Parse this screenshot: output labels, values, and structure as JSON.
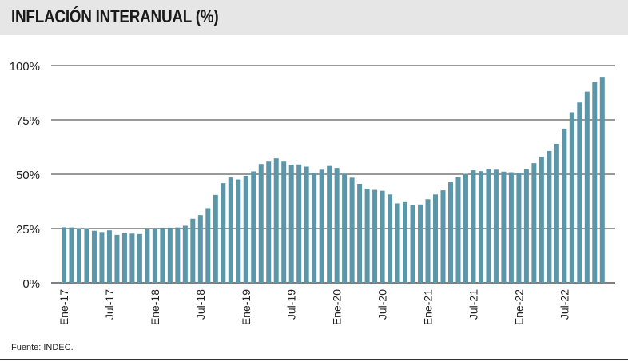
{
  "title": "INFLACIÓN INTERANUAL (%)",
  "source": "Fuente: INDEC.",
  "colors": {
    "bar": "#5b97a8",
    "grid": "#333333",
    "header_bg": "#e6e6e6"
  },
  "chart_data": {
    "type": "bar",
    "title": "INFLACIÓN INTERANUAL (%)",
    "ylim": [
      0,
      100
    ],
    "yticks": [
      "0%",
      "25%",
      "50%",
      "75%",
      "100%"
    ],
    "ytick_values": [
      0,
      25,
      50,
      75,
      100
    ],
    "grid": true,
    "categories": [
      "Ene-17",
      "Feb-17",
      "Mar-17",
      "Abr-17",
      "May-17",
      "Jun-17",
      "Jul-17",
      "Ago-17",
      "Sep-17",
      "Oct-17",
      "Nov-17",
      "Dic-17",
      "Ene-18",
      "Feb-18",
      "Mar-18",
      "Abr-18",
      "May-18",
      "Jun-18",
      "Jul-18",
      "Ago-18",
      "Sep-18",
      "Oct-18",
      "Nov-18",
      "Dic-18",
      "Ene-19",
      "Feb-19",
      "Mar-19",
      "Abr-19",
      "May-19",
      "Jun-19",
      "Jul-19",
      "Ago-19",
      "Sep-19",
      "Oct-19",
      "Nov-19",
      "Dic-19",
      "Ene-20",
      "Feb-20",
      "Mar-20",
      "Abr-20",
      "May-20",
      "Jun-20",
      "Jul-20",
      "Ago-20",
      "Sep-20",
      "Oct-20",
      "Nov-20",
      "Dic-20",
      "Ene-21",
      "Feb-21",
      "Mar-21",
      "Abr-21",
      "May-21",
      "Jun-21",
      "Jul-21",
      "Ago-21",
      "Sep-21",
      "Oct-21",
      "Nov-21",
      "Dic-21",
      "Ene-22",
      "Feb-22",
      "Mar-22",
      "Abr-22",
      "May-22",
      "Jun-22",
      "Jul-22",
      "Ago-22",
      "Sep-22",
      "Oct-22",
      "Nov-22",
      "Dic-22"
    ],
    "xtick_labels": [
      "Ene-17",
      "Jul-17",
      "Ene-18",
      "Jul-18",
      "Ene-19",
      "Jul-19",
      "Ene-20",
      "Jul-20",
      "Ene-21",
      "Jul-21",
      "Ene-22",
      "Jul-22"
    ],
    "values": [
      25.6,
      25.5,
      25.2,
      25.2,
      24.0,
      23.4,
      24.2,
      22.1,
      22.8,
      22.7,
      22.5,
      24.8,
      25.0,
      25.4,
      25.4,
      25.5,
      26.3,
      29.5,
      31.2,
      34.4,
      40.5,
      45.9,
      48.5,
      47.6,
      49.3,
      51.3,
      54.7,
      55.8,
      57.3,
      55.8,
      54.4,
      54.5,
      53.5,
      50.5,
      52.1,
      53.8,
      52.9,
      50.3,
      48.4,
      45.6,
      43.4,
      42.8,
      42.4,
      40.7,
      36.6,
      37.2,
      35.8,
      36.1,
      38.5,
      40.7,
      42.6,
      46.3,
      48.8,
      50.2,
      51.8,
      51.4,
      52.5,
      52.1,
      51.2,
      50.9,
      50.7,
      52.3,
      55.1,
      58.0,
      60.7,
      64.0,
      71.0,
      78.5,
      83.0,
      88.0,
      92.4,
      94.8
    ]
  }
}
